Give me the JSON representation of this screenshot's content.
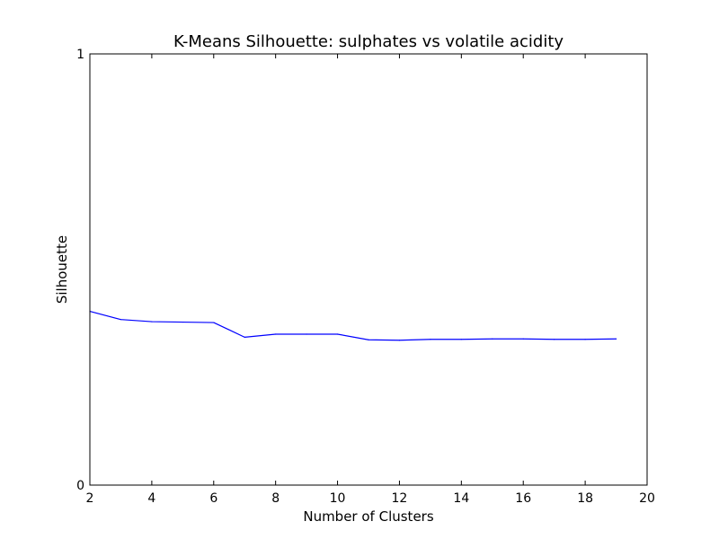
{
  "chart_data": {
    "type": "line",
    "title": "K-Means Silhouette: sulphates vs volatile acidity",
    "xlabel": "Number of Clusters",
    "ylabel": "Silhouette",
    "xlim": [
      2,
      20
    ],
    "ylim": [
      0,
      1
    ],
    "xticks": [
      "2",
      "4",
      "6",
      "8",
      "10",
      "12",
      "14",
      "16",
      "18",
      "20"
    ],
    "yticks": [
      "0",
      "1"
    ],
    "grid": false,
    "legend": "none",
    "series": [
      {
        "color": "#0000ff",
        "x": [
          2,
          3,
          4,
          5,
          6,
          7,
          8,
          9,
          10,
          11,
          12,
          13,
          14,
          15,
          16,
          17,
          18,
          19
        ],
        "y": [
          0.403,
          0.384,
          0.379,
          0.378,
          0.377,
          0.343,
          0.35,
          0.35,
          0.35,
          0.337,
          0.336,
          0.338,
          0.338,
          0.339,
          0.339,
          0.338,
          0.338,
          0.339
        ]
      }
    ]
  }
}
